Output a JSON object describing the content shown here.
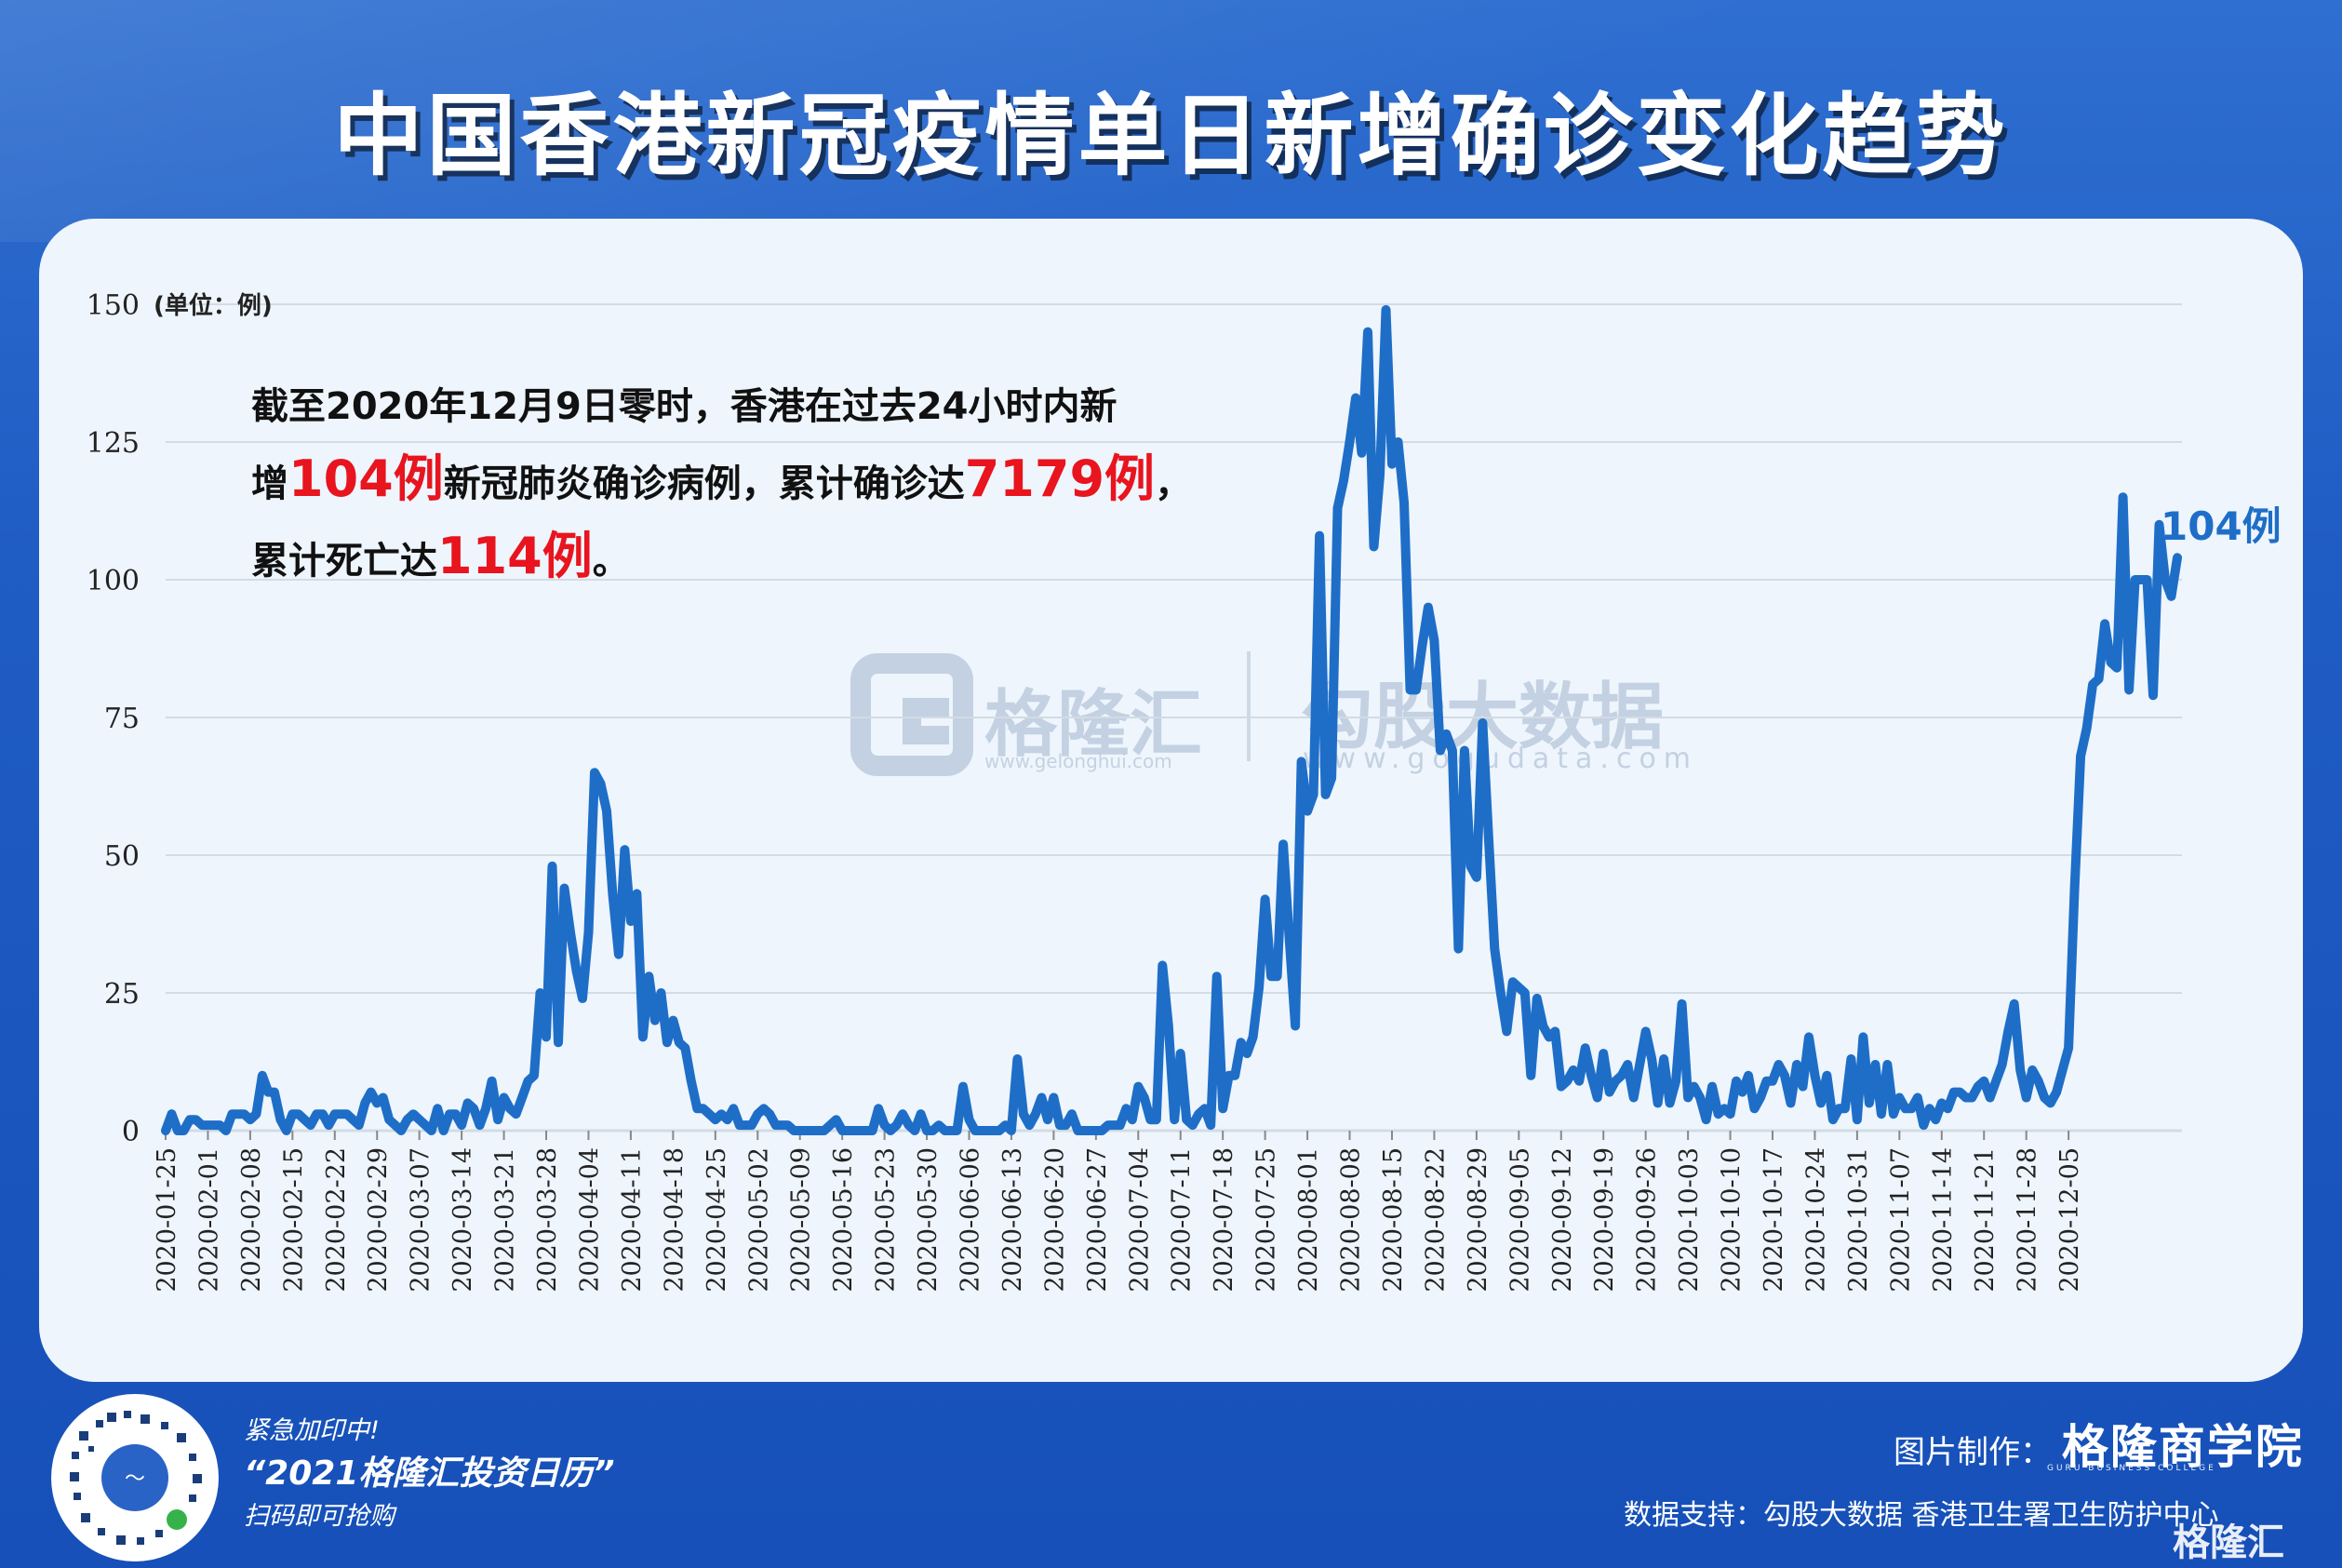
{
  "title": "中国香港新冠疫情单日新增确诊变化趋势",
  "annotation": {
    "line1": "截至2020年12月9日零时，香港在过去24小时内新",
    "line2_pre": "增",
    "line2_hl1": "104例",
    "line2_mid": "新冠肺炎确诊病例，累计确诊达",
    "line2_hl2": "7179例",
    "line2_post": "，",
    "line3_pre": "累计死亡达",
    "line3_hl": "114例",
    "line3_post": "。"
  },
  "watermark": {
    "logo1": "格隆汇",
    "url1": "www.gelonghui.com",
    "logo2": "勾股大数据",
    "url2": "www.gogudata.com"
  },
  "colors": {
    "line": "#1e6ec8",
    "highlight": "#e8141e",
    "grid": "#d3dbe4"
  },
  "chart_data": {
    "type": "line",
    "title": "中国香港新冠疫情单日新增确诊变化趋势",
    "ylabel": "(单位：例)",
    "ylim": [
      0,
      150
    ],
    "yticks": [
      0,
      25,
      50,
      75,
      100,
      125,
      150
    ],
    "grid": true,
    "last_label": "104例",
    "xticks": [
      "2020-01-25",
      "2020-02-01",
      "2020-02-08",
      "2020-02-15",
      "2020-02-22",
      "2020-02-29",
      "2020-03-07",
      "2020-03-14",
      "2020-03-21",
      "2020-03-28",
      "2020-04-04",
      "2020-04-11",
      "2020-04-18",
      "2020-04-25",
      "2020-05-02",
      "2020-05-09",
      "2020-05-16",
      "2020-05-23",
      "2020-05-30",
      "2020-06-06",
      "2020-06-13",
      "2020-06-20",
      "2020-06-27",
      "2020-07-04",
      "2020-07-11",
      "2020-07-18",
      "2020-07-25",
      "2020-08-01",
      "2020-08-08",
      "2020-08-15",
      "2020-08-22",
      "2020-08-29",
      "2020-09-05",
      "2020-09-12",
      "2020-09-19",
      "2020-09-26",
      "2020-10-03",
      "2020-10-10",
      "2020-10-17",
      "2020-10-24",
      "2020-10-31",
      "2020-11-07",
      "2020-11-14",
      "2020-11-21",
      "2020-11-28",
      "2020-12-05"
    ],
    "series": [
      {
        "x_start": "2020-01-25",
        "values": [
          0,
          3,
          0,
          0,
          2,
          2,
          1,
          1,
          1,
          1,
          0,
          3,
          3,
          3,
          2,
          3,
          10,
          7,
          7,
          2,
          0,
          3,
          3,
          2,
          1,
          3,
          3,
          1,
          3,
          3,
          3,
          2,
          1,
          5,
          7,
          5,
          6,
          2,
          1,
          0,
          2,
          3,
          2,
          1,
          0,
          4,
          0,
          3,
          3,
          1,
          5,
          4,
          1,
          4,
          9,
          2,
          6,
          4,
          3,
          6,
          9,
          10,
          25,
          17,
          48,
          16,
          44,
          36,
          29,
          24,
          36,
          65,
          63,
          58,
          43,
          32,
          51,
          38,
          43,
          17,
          28,
          20,
          25,
          16,
          20,
          16,
          15,
          9,
          4,
          4,
          3,
          2,
          3,
          2,
          4,
          1,
          1,
          1,
          3,
          4,
          3,
          1,
          1,
          1,
          0,
          0,
          0,
          0,
          0,
          0,
          1,
          2,
          0,
          0,
          0,
          0,
          0,
          0,
          4,
          1,
          0,
          1,
          3,
          1,
          0,
          3,
          0,
          0,
          1,
          0,
          0,
          0,
          8,
          2,
          0,
          0,
          0,
          0,
          0,
          1,
          0,
          13,
          3,
          1,
          3,
          6,
          2,
          6,
          1,
          1,
          3,
          0,
          0,
          0,
          0,
          0,
          1,
          1,
          1,
          4,
          2,
          8,
          6,
          2,
          2,
          30,
          19,
          2,
          14,
          2,
          1,
          3,
          4,
          1,
          28,
          4,
          10,
          10,
          16,
          14,
          17,
          26,
          42,
          28,
          28,
          52,
          35,
          19,
          67,
          58,
          61,
          108,
          61,
          64,
          113,
          118,
          125,
          133,
          123,
          145,
          106,
          119,
          149,
          121,
          125,
          114,
          80,
          80,
          88,
          95,
          89,
          69,
          72,
          69,
          33,
          69,
          48,
          46,
          74,
          53,
          33,
          25,
          18,
          27,
          26,
          25,
          10,
          24,
          19,
          17,
          18,
          8,
          9,
          11,
          9,
          15,
          10,
          6,
          14,
          7,
          9,
          10,
          12,
          6,
          12,
          18,
          13,
          5,
          13,
          5,
          9,
          23,
          6,
          8,
          6,
          2,
          8,
          3,
          4,
          3,
          9,
          7,
          10,
          4,
          6,
          9,
          9,
          12,
          10,
          5,
          12,
          8,
          17,
          10,
          5,
          10,
          2,
          4,
          4,
          13,
          2,
          17,
          5,
          12,
          3,
          12,
          3,
          6,
          4,
          4,
          6,
          1,
          4,
          2,
          5,
          4,
          7,
          7,
          6,
          6,
          8,
          9,
          6,
          9,
          12,
          18,
          23,
          11,
          6,
          11,
          9,
          6,
          5,
          7,
          11,
          15,
          44,
          68,
          73,
          81,
          82,
          92,
          85,
          84,
          115,
          80,
          100,
          100,
          100,
          79,
          110,
          100,
          97,
          104
        ]
      }
    ]
  }
}
